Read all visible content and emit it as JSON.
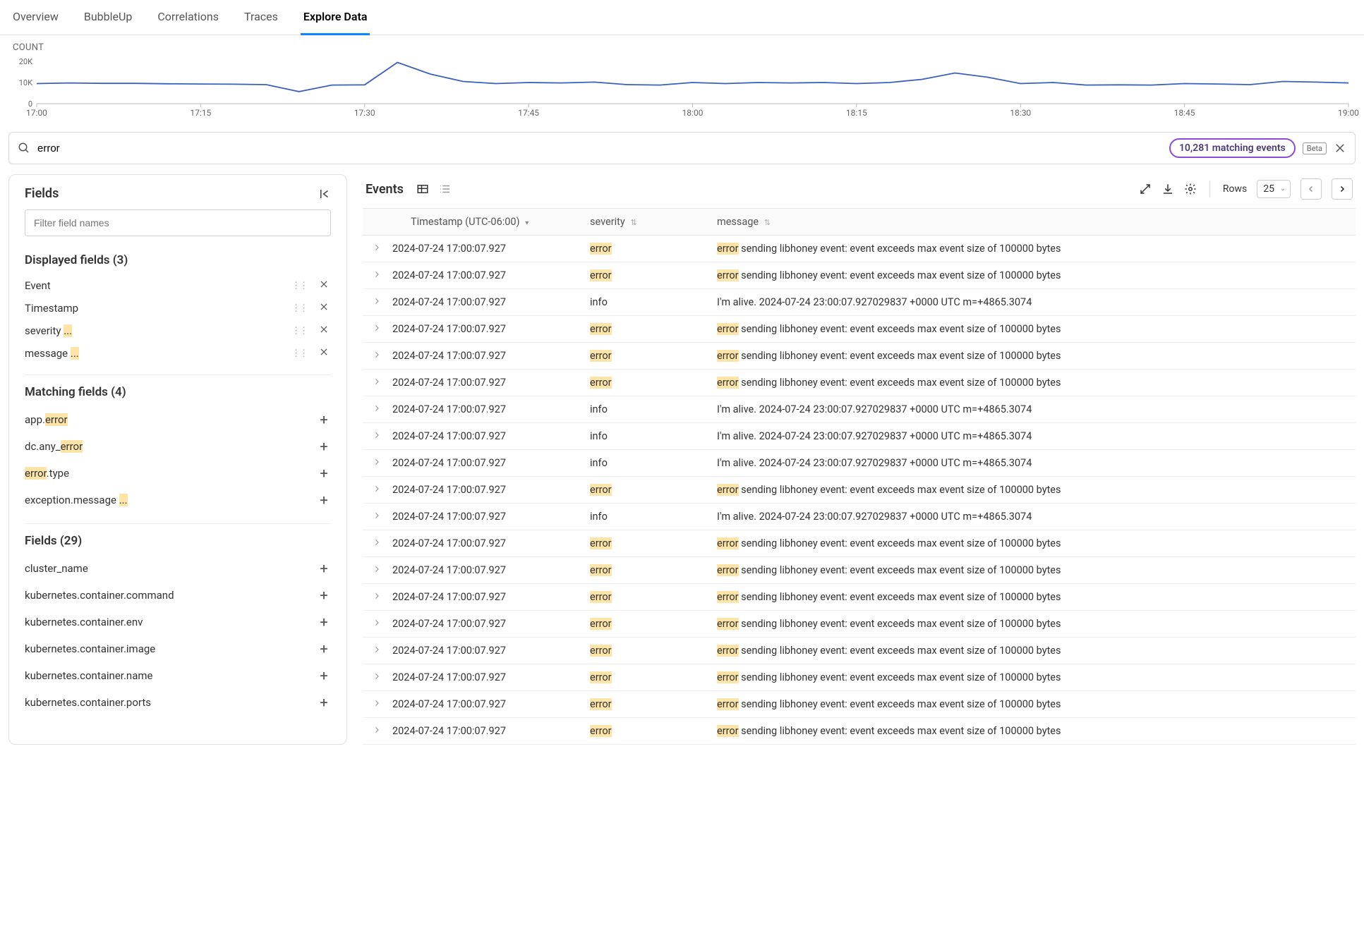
{
  "tabs": {
    "items": [
      "Overview",
      "BubbleUp",
      "Correlations",
      "Traces",
      "Explore Data"
    ],
    "activeIndex": 4
  },
  "chart": {
    "title": "COUNT",
    "lineColor": "#3b5fc0",
    "axisColor": "#666666",
    "yTicks": [
      "20K",
      "10K",
      "0"
    ],
    "yValues": [
      20000,
      10000,
      0
    ],
    "yMax": 22000,
    "xLabels": [
      "17:00",
      "17:15",
      "17:30",
      "17:45",
      "18:00",
      "18:15",
      "18:30",
      "18:45",
      "19:00"
    ],
    "series": [
      9500,
      9800,
      9600,
      9600,
      9400,
      9300,
      9200,
      9000,
      5700,
      8800,
      8900,
      19500,
      14000,
      10500,
      9500,
      10000,
      9800,
      10200,
      9000,
      8800,
      10000,
      9500,
      10000,
      9800,
      10000,
      9500,
      10000,
      11500,
      14500,
      12500,
      9500,
      10000,
      8800,
      8900,
      8800,
      9500,
      9300,
      9000,
      10500,
      10200,
      9800
    ]
  },
  "search": {
    "value": "error",
    "matchingLabel": "10,281 matching events",
    "betaLabel": "Beta"
  },
  "sidebar": {
    "title": "Fields",
    "filterPlaceholder": "Filter field names",
    "displayed": {
      "title": "Displayed fields (3)",
      "items": [
        {
          "segments": [
            {
              "t": "Event"
            }
          ]
        },
        {
          "segments": [
            {
              "t": "Timestamp"
            }
          ]
        },
        {
          "segments": [
            {
              "t": "severity "
            },
            {
              "t": "...",
              "hl": true
            }
          ]
        },
        {
          "segments": [
            {
              "t": "message "
            },
            {
              "t": "...",
              "hl": true
            }
          ]
        }
      ]
    },
    "matching": {
      "title": "Matching fields (4)",
      "items": [
        {
          "segments": [
            {
              "t": "app."
            },
            {
              "t": "error",
              "hl": true
            }
          ]
        },
        {
          "segments": [
            {
              "t": "dc.any_"
            },
            {
              "t": "error",
              "hl": true
            }
          ]
        },
        {
          "segments": [
            {
              "t": "error",
              "hl": true
            },
            {
              "t": ".type"
            }
          ]
        },
        {
          "segments": [
            {
              "t": "exception.message "
            },
            {
              "t": "...",
              "hl": true
            }
          ]
        }
      ]
    },
    "other": {
      "title": "Fields (29)",
      "items": [
        {
          "segments": [
            {
              "t": "cluster_name"
            }
          ]
        },
        {
          "segments": [
            {
              "t": "kubernetes.container.command"
            }
          ]
        },
        {
          "segments": [
            {
              "t": "kubernetes.container.env"
            }
          ]
        },
        {
          "segments": [
            {
              "t": "kubernetes.container.image"
            }
          ]
        },
        {
          "segments": [
            {
              "t": "kubernetes.container.name"
            }
          ]
        },
        {
          "segments": [
            {
              "t": "kubernetes.container.ports"
            }
          ]
        }
      ]
    }
  },
  "events": {
    "title": "Events",
    "rowsLabel": "Rows",
    "rowsValue": "25",
    "columns": {
      "ts": "Timestamp (UTC-06:00)",
      "sev": "severity",
      "msg": "message"
    },
    "highlightColor": "#ffe4a8",
    "rows": [
      {
        "ts": "2024-07-24 17:00:07.927",
        "sev": "error",
        "sevHl": true,
        "msg": [
          {
            "t": "error",
            "hl": true
          },
          {
            "t": " sending libhoney event: event exceeds max event size of 100000 bytes"
          }
        ]
      },
      {
        "ts": "2024-07-24 17:00:07.927",
        "sev": "error",
        "sevHl": true,
        "msg": [
          {
            "t": "error",
            "hl": true
          },
          {
            "t": " sending libhoney event: event exceeds max event size of 100000 bytes"
          }
        ]
      },
      {
        "ts": "2024-07-24 17:00:07.927",
        "sev": "info",
        "sevHl": false,
        "msg": [
          {
            "t": "I'm alive. 2024-07-24 23:00:07.927029837 +0000 UTC m=+4865.3074"
          }
        ]
      },
      {
        "ts": "2024-07-24 17:00:07.927",
        "sev": "error",
        "sevHl": true,
        "msg": [
          {
            "t": "error",
            "hl": true
          },
          {
            "t": " sending libhoney event: event exceeds max event size of 100000 bytes"
          }
        ]
      },
      {
        "ts": "2024-07-24 17:00:07.927",
        "sev": "error",
        "sevHl": true,
        "msg": [
          {
            "t": "error",
            "hl": true
          },
          {
            "t": " sending libhoney event: event exceeds max event size of 100000 bytes"
          }
        ]
      },
      {
        "ts": "2024-07-24 17:00:07.927",
        "sev": "error",
        "sevHl": true,
        "msg": [
          {
            "t": "error",
            "hl": true
          },
          {
            "t": " sending libhoney event: event exceeds max event size of 100000 bytes"
          }
        ]
      },
      {
        "ts": "2024-07-24 17:00:07.927",
        "sev": "info",
        "sevHl": false,
        "msg": [
          {
            "t": "I'm alive. 2024-07-24 23:00:07.927029837 +0000 UTC m=+4865.3074"
          }
        ]
      },
      {
        "ts": "2024-07-24 17:00:07.927",
        "sev": "info",
        "sevHl": false,
        "msg": [
          {
            "t": "I'm alive. 2024-07-24 23:00:07.927029837 +0000 UTC m=+4865.3074"
          }
        ]
      },
      {
        "ts": "2024-07-24 17:00:07.927",
        "sev": "info",
        "sevHl": false,
        "msg": [
          {
            "t": "I'm alive. 2024-07-24 23:00:07.927029837 +0000 UTC m=+4865.3074"
          }
        ]
      },
      {
        "ts": "2024-07-24 17:00:07.927",
        "sev": "error",
        "sevHl": true,
        "msg": [
          {
            "t": "error",
            "hl": true
          },
          {
            "t": " sending libhoney event: event exceeds max event size of 100000 bytes"
          }
        ]
      },
      {
        "ts": "2024-07-24 17:00:07.927",
        "sev": "info",
        "sevHl": false,
        "msg": [
          {
            "t": "I'm alive. 2024-07-24 23:00:07.927029837 +0000 UTC m=+4865.3074"
          }
        ]
      },
      {
        "ts": "2024-07-24 17:00:07.927",
        "sev": "error",
        "sevHl": true,
        "msg": [
          {
            "t": "error",
            "hl": true
          },
          {
            "t": " sending libhoney event: event exceeds max event size of 100000 bytes"
          }
        ]
      },
      {
        "ts": "2024-07-24 17:00:07.927",
        "sev": "error",
        "sevHl": true,
        "msg": [
          {
            "t": "error",
            "hl": true
          },
          {
            "t": " sending libhoney event: event exceeds max event size of 100000 bytes"
          }
        ]
      },
      {
        "ts": "2024-07-24 17:00:07.927",
        "sev": "error",
        "sevHl": true,
        "msg": [
          {
            "t": "error",
            "hl": true
          },
          {
            "t": " sending libhoney event: event exceeds max event size of 100000 bytes"
          }
        ]
      },
      {
        "ts": "2024-07-24 17:00:07.927",
        "sev": "error",
        "sevHl": true,
        "msg": [
          {
            "t": "error",
            "hl": true
          },
          {
            "t": " sending libhoney event: event exceeds max event size of 100000 bytes"
          }
        ]
      },
      {
        "ts": "2024-07-24 17:00:07.927",
        "sev": "error",
        "sevHl": true,
        "msg": [
          {
            "t": "error",
            "hl": true
          },
          {
            "t": " sending libhoney event: event exceeds max event size of 100000 bytes"
          }
        ]
      },
      {
        "ts": "2024-07-24 17:00:07.927",
        "sev": "error",
        "sevHl": true,
        "msg": [
          {
            "t": "error",
            "hl": true
          },
          {
            "t": " sending libhoney event: event exceeds max event size of 100000 bytes"
          }
        ]
      },
      {
        "ts": "2024-07-24 17:00:07.927",
        "sev": "error",
        "sevHl": true,
        "msg": [
          {
            "t": "error",
            "hl": true
          },
          {
            "t": " sending libhoney event: event exceeds max event size of 100000 bytes"
          }
        ]
      },
      {
        "ts": "2024-07-24 17:00:07.927",
        "sev": "error",
        "sevHl": true,
        "msg": [
          {
            "t": "error",
            "hl": true
          },
          {
            "t": " sending libhoney event: event exceeds max event size of 100000 bytes"
          }
        ]
      }
    ]
  }
}
